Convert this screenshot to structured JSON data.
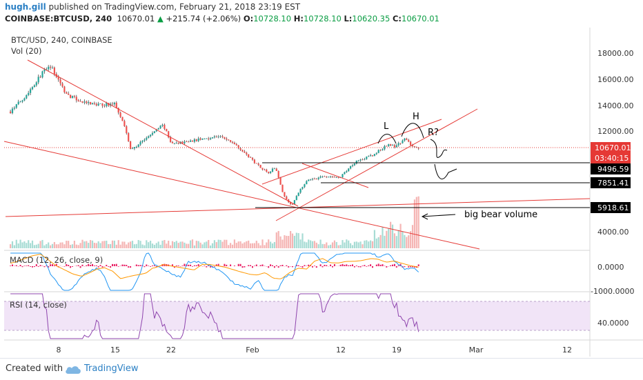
{
  "header": {
    "user": "hugh.gill",
    "published_text": "published on TradingView.com, February 21, 2018 23:19 EST",
    "symbol": "COINBASE:BTCUSD, 240",
    "last": "10670.01",
    "change_arrow": "▲",
    "change": "+215.74 (+2.06%)",
    "o_label": "O:",
    "o_value": "10728.10",
    "h_label": "H:",
    "h_value": "10728.10",
    "l_label": "L:",
    "l_value": "10620.35",
    "c_label": "C:",
    "c_value": "10670.01"
  },
  "chart_data": [
    {
      "type": "candlestick",
      "title": "BTC/USD, 240, COINBASE",
      "volume_label": "Vol (20)",
      "y_ticks": [
        "18000.00",
        "16000.00",
        "14000.00",
        "12000.00",
        "4000.00"
      ],
      "ylim": [
        3000,
        19000
      ],
      "x_ticks": [
        "8",
        "15",
        "22",
        "Feb",
        "12",
        "19",
        "Mar",
        "12"
      ],
      "price_path": [
        {
          "d": "Jan 2",
          "v": 13500
        },
        {
          "d": "Jan 4",
          "v": 14800
        },
        {
          "d": "Jan 6",
          "v": 16500
        },
        {
          "d": "Jan 7",
          "v": 17000
        },
        {
          "d": "Jan 9",
          "v": 14800
        },
        {
          "d": "Jan 11",
          "v": 14200
        },
        {
          "d": "Jan 13",
          "v": 14000
        },
        {
          "d": "Jan 15",
          "v": 14100
        },
        {
          "d": "Jan 16",
          "v": 12800
        },
        {
          "d": "Jan 17",
          "v": 10500
        },
        {
          "d": "Jan 18",
          "v": 11000
        },
        {
          "d": "Jan 20",
          "v": 12000
        },
        {
          "d": "Jan 21",
          "v": 12500
        },
        {
          "d": "Jan 22",
          "v": 11000
        },
        {
          "d": "Jan 25",
          "v": 11300
        },
        {
          "d": "Jan 28",
          "v": 11600
        },
        {
          "d": "Jan 30",
          "v": 11000
        },
        {
          "d": "Feb 1",
          "v": 9800
        },
        {
          "d": "Feb 3",
          "v": 8800
        },
        {
          "d": "Feb 4",
          "v": 9200
        },
        {
          "d": "Feb 5",
          "v": 7000
        },
        {
          "d": "Feb 6",
          "v": 6200
        },
        {
          "d": "Feb 7",
          "v": 7500
        },
        {
          "d": "Feb 8",
          "v": 8200
        },
        {
          "d": "Feb 10",
          "v": 8500
        },
        {
          "d": "Feb 12",
          "v": 8400
        },
        {
          "d": "Feb 14",
          "v": 9700
        },
        {
          "d": "Feb 16",
          "v": 10100
        },
        {
          "d": "Feb 18",
          "v": 11000
        },
        {
          "d": "Feb 19",
          "v": 10800
        },
        {
          "d": "Feb 20",
          "v": 11400
        },
        {
          "d": "Feb 21",
          "v": 10900
        },
        {
          "d": "Feb 22",
          "v": 10670
        }
      ],
      "price_labels": [
        {
          "text": "10670.01",
          "color": "#e53935"
        },
        {
          "text": "03:40:15",
          "color": "#e53935"
        },
        {
          "text": "9496.59",
          "color": "#000000"
        },
        {
          "text": "7851.41",
          "color": "#000000"
        },
        {
          "text": "5918.61",
          "color": "#000000"
        }
      ],
      "annotations": [
        "L",
        "H",
        "R?",
        "big bear volume"
      ],
      "colors": {
        "up": "#26a69a",
        "down": "#ef5350",
        "trendline": "#e53935",
        "level": "#000000"
      }
    },
    {
      "type": "line",
      "title": "MACD (12, 26, close, 9)",
      "y_ticks": [
        "0.0000",
        "-1000.0000"
      ],
      "series": [
        {
          "name": "MACD"
        },
        {
          "name": "Signal"
        }
      ]
    },
    {
      "type": "line",
      "title": "RSI (14, close)",
      "y_ticks": [
        "40.0000"
      ],
      "band": [
        30,
        70
      ]
    }
  ],
  "footer": {
    "created_with": "Created with",
    "brand": "TradingView"
  }
}
